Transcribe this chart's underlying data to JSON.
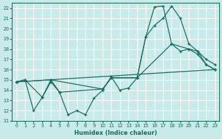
{
  "xlabel": "Humidex (Indice chaleur)",
  "xlim": [
    -0.5,
    23.5
  ],
  "ylim": [
    11,
    22.5
  ],
  "yticks": [
    11,
    12,
    13,
    14,
    15,
    16,
    17,
    18,
    19,
    20,
    21,
    22
  ],
  "xticks": [
    0,
    1,
    2,
    3,
    4,
    5,
    6,
    7,
    8,
    9,
    10,
    11,
    12,
    13,
    14,
    15,
    16,
    17,
    18,
    19,
    20,
    21,
    22,
    23
  ],
  "bg_color": "#c8eae8",
  "grid_color": "#ffffff",
  "line_color": "#1a6b5a",
  "line1_x": [
    0,
    1,
    2,
    3,
    4,
    5,
    6,
    7,
    8,
    9,
    10,
    11,
    12,
    13,
    14,
    15,
    16,
    17,
    18,
    19,
    20,
    21,
    22,
    23
  ],
  "line1_y": [
    14.8,
    15.0,
    12.0,
    13.3,
    15.0,
    13.8,
    11.6,
    12.0,
    11.6,
    13.2,
    14.0,
    15.3,
    14.0,
    14.2,
    15.2,
    19.2,
    20.3,
    21.0,
    22.2,
    21.0,
    18.5,
    17.8,
    17.0,
    16.5
  ],
  "line2_x": [
    0,
    1,
    3,
    4,
    5,
    10,
    11,
    14,
    15,
    16,
    17,
    18,
    20,
    21,
    22,
    23
  ],
  "line2_y": [
    14.8,
    15.0,
    13.3,
    14.8,
    13.8,
    14.1,
    15.2,
    15.2,
    19.2,
    22.1,
    22.2,
    18.5,
    18.0,
    17.8,
    16.5,
    16.0
  ],
  "line3_x": [
    0,
    4,
    10,
    11,
    14,
    18,
    19,
    20,
    21,
    22,
    23
  ],
  "line3_y": [
    14.8,
    15.0,
    14.1,
    15.2,
    15.2,
    18.5,
    17.8,
    18.0,
    17.5,
    16.5,
    16.0
  ],
  "line4_x": [
    0,
    23
  ],
  "line4_y": [
    14.8,
    16.0
  ]
}
